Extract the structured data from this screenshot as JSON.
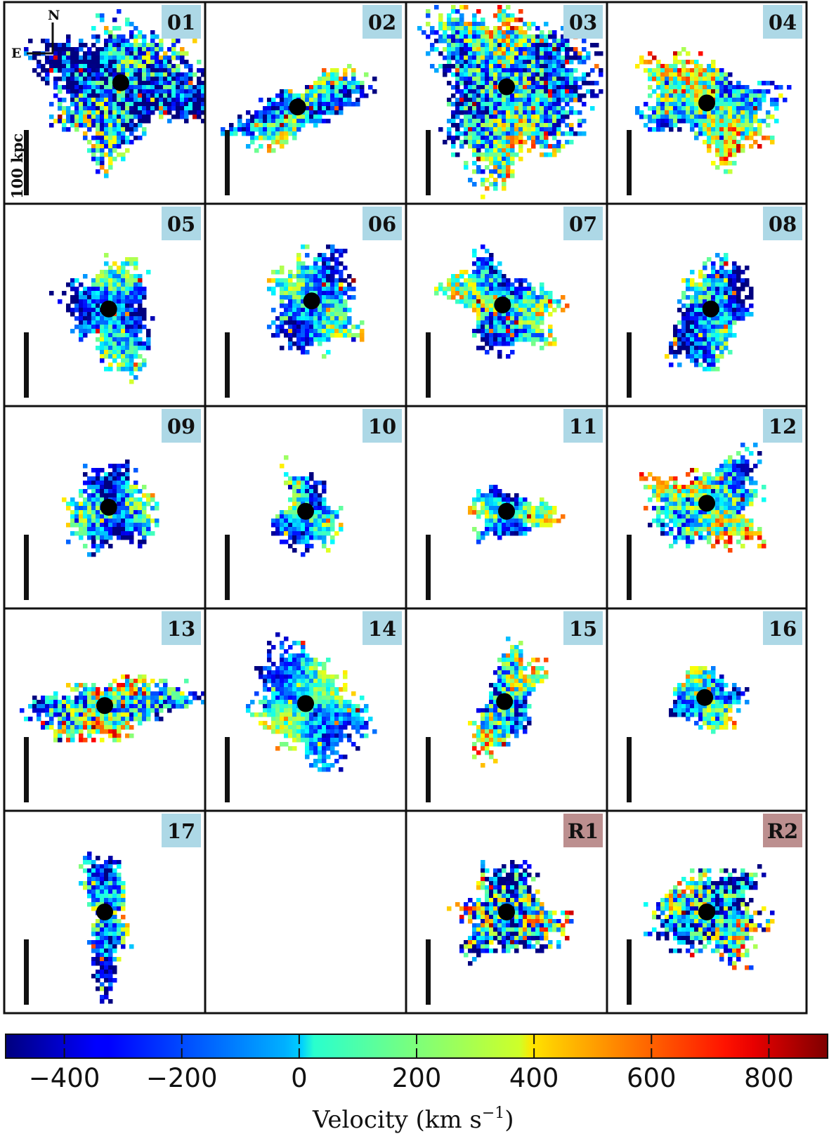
{
  "panels": [
    {
      "id": "01",
      "type": "cluster"
    },
    {
      "id": "02",
      "type": "cluster"
    },
    {
      "id": "03",
      "type": "cluster"
    },
    {
      "id": "04",
      "type": "cluster"
    },
    {
      "id": "05",
      "type": "cluster"
    },
    {
      "id": "06",
      "type": "cluster"
    },
    {
      "id": "07",
      "type": "cluster"
    },
    {
      "id": "08",
      "type": "cluster"
    },
    {
      "id": "09",
      "type": "cluster"
    },
    {
      "id": "10",
      "type": "cluster"
    },
    {
      "id": "11",
      "type": "cluster"
    },
    {
      "id": "12",
      "type": "cluster"
    },
    {
      "id": "13",
      "type": "cluster"
    },
    {
      "id": "14",
      "type": "cluster"
    },
    {
      "id": "15",
      "type": "cluster"
    },
    {
      "id": "16",
      "type": "cluster"
    },
    {
      "id": "17",
      "type": "cluster"
    },
    {
      "id": "",
      "type": "empty"
    },
    {
      "id": "R1",
      "type": "reference"
    },
    {
      "id": "R2",
      "type": "reference"
    }
  ],
  "label_colors": {
    "cluster": "#add8e6",
    "reference": "#bc8f8f"
  },
  "compass": {
    "north": "N",
    "east": "E"
  },
  "scale_bar": {
    "label": "100 kpc"
  },
  "colorbar": {
    "label": "Velocity (km s",
    "label_exponent": "−1",
    "label_close": ")",
    "range": [
      -500,
      900
    ],
    "ticks": [
      {
        "value": -400,
        "label": "−400"
      },
      {
        "value": -200,
        "label": "−200"
      },
      {
        "value": 0,
        "label": "0"
      },
      {
        "value": 200,
        "label": "200"
      },
      {
        "value": 400,
        "label": "400"
      },
      {
        "value": 600,
        "label": "600"
      },
      {
        "value": 800,
        "label": "800"
      }
    ],
    "colormap": "jet"
  }
}
